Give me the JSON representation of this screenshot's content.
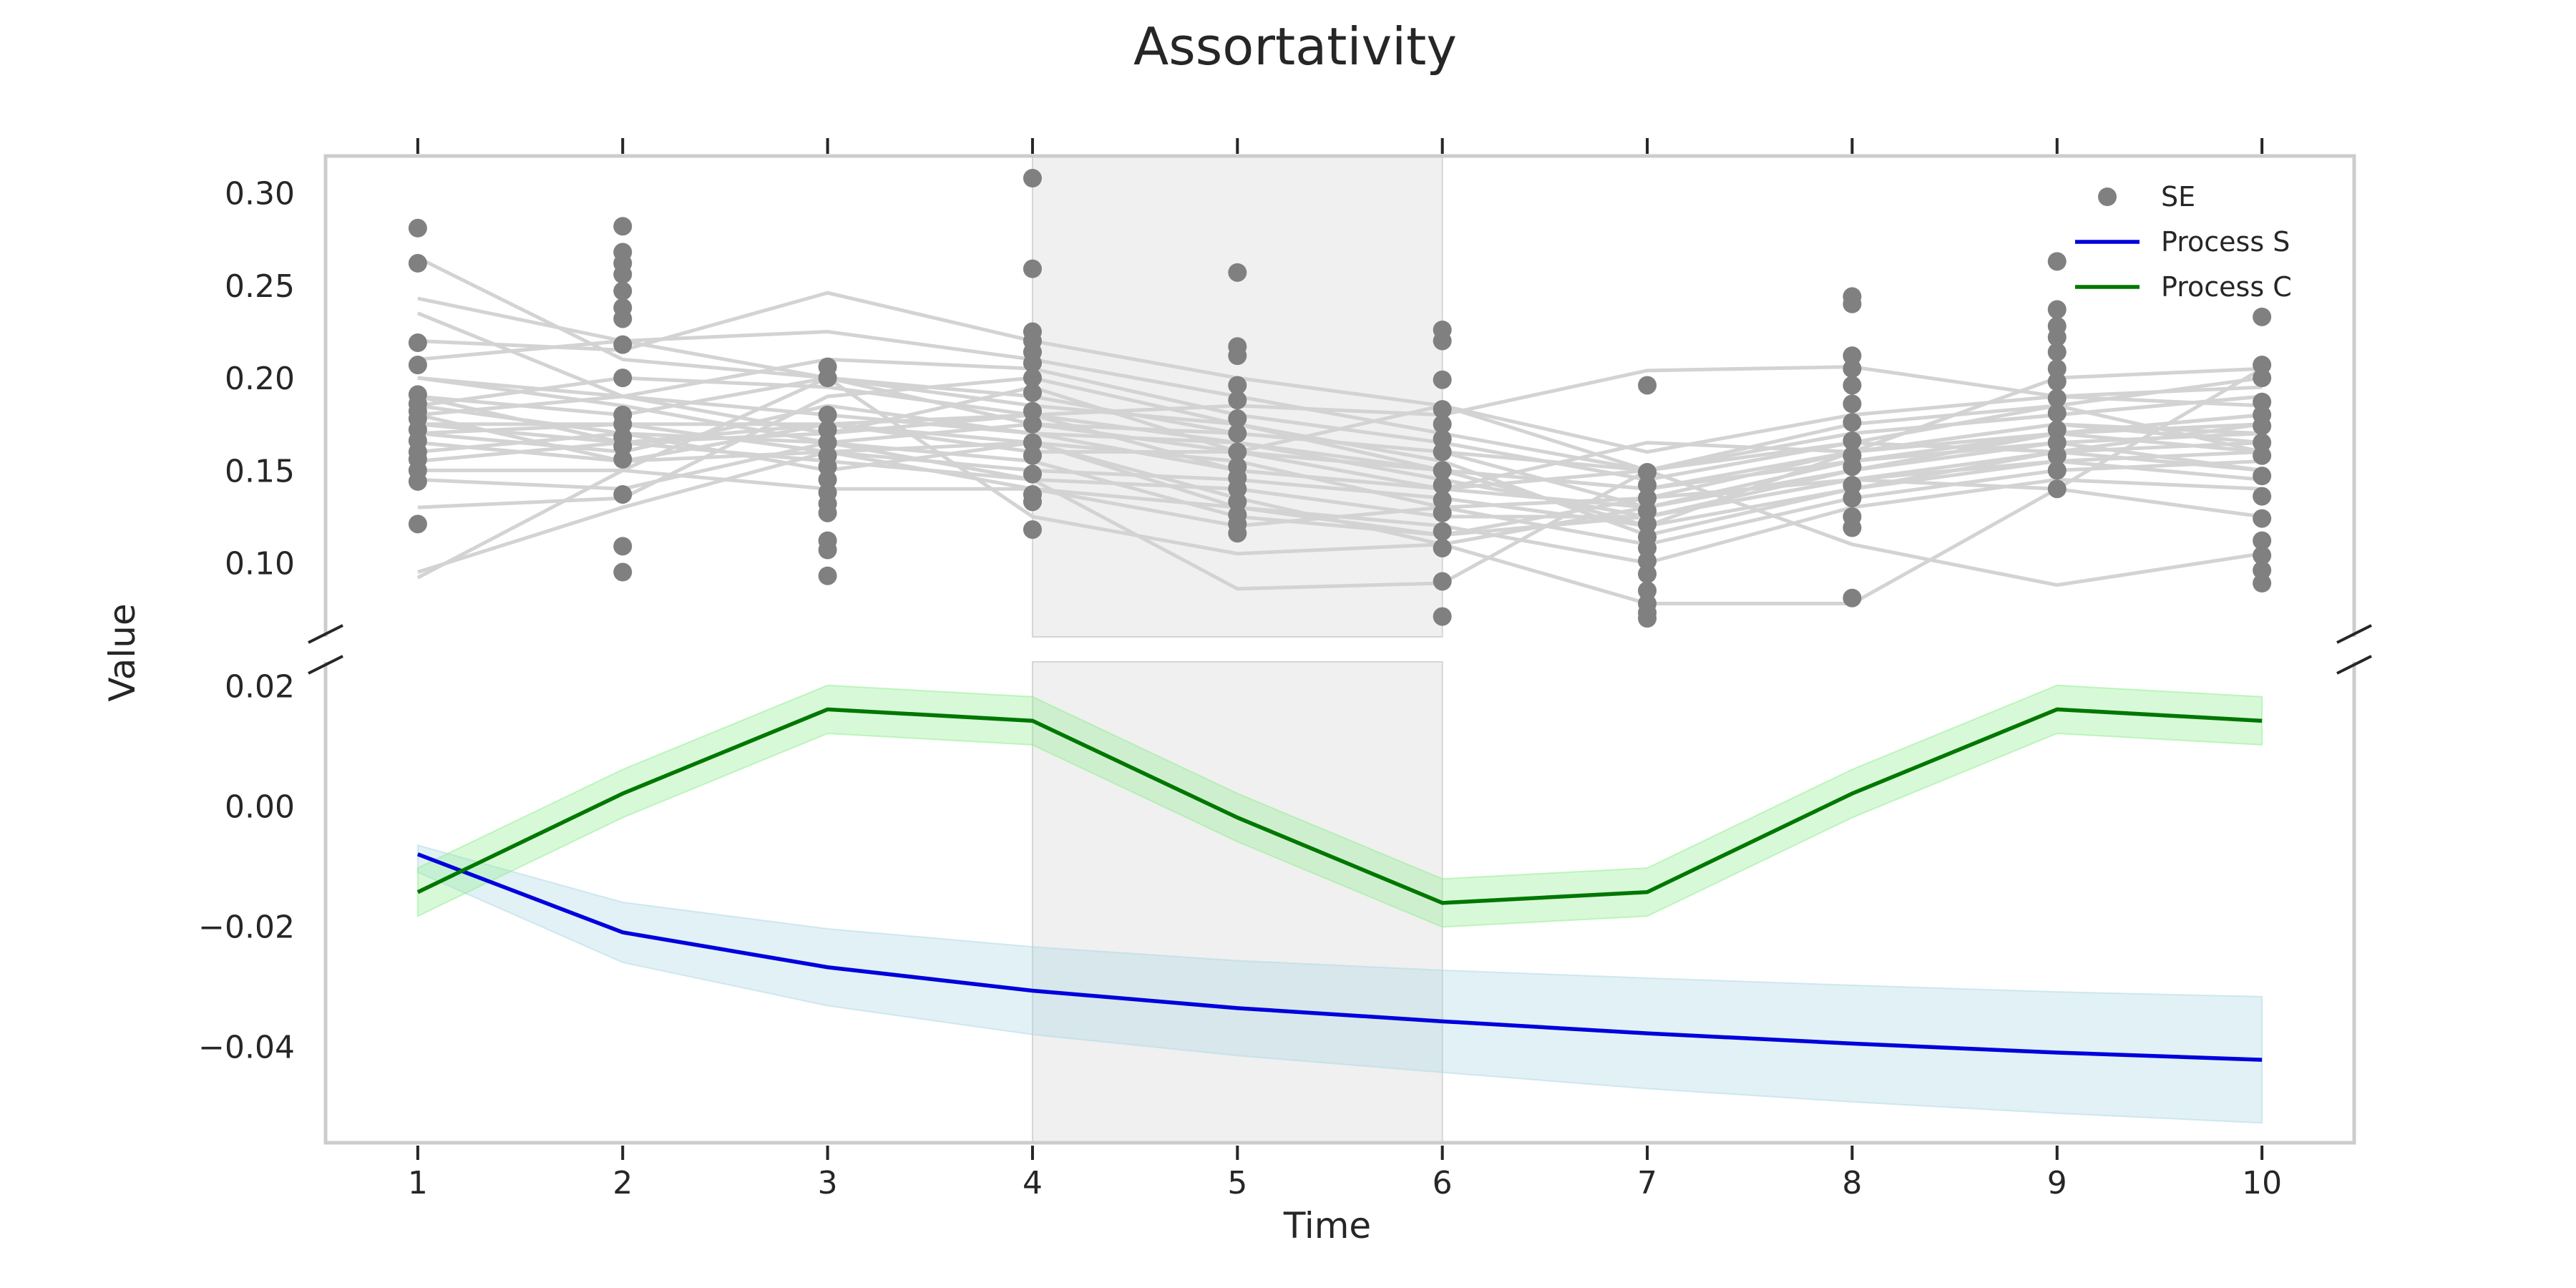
{
  "chart_data": {
    "type": "line",
    "title": "Assortativity",
    "xlabel": "Time",
    "ylabel": "Value",
    "x": [
      1,
      2,
      3,
      4,
      5,
      6,
      7,
      8,
      9,
      10
    ],
    "x_ticks": [
      "1",
      "2",
      "3",
      "4",
      "5",
      "6",
      "7",
      "8",
      "9",
      "10"
    ],
    "xlim": [
      0.55,
      10.45
    ],
    "broken_axis": true,
    "shaded_x_range": [
      4,
      6
    ],
    "grid": false,
    "legend_position": "top-right",
    "legend": [
      {
        "label": "SE",
        "marker": "dot",
        "color": "#808080"
      },
      {
        "label": "Process S",
        "marker": "line",
        "color": "#0000dd"
      },
      {
        "label": "Process C",
        "marker": "line",
        "color": "#007700"
      }
    ],
    "panels": [
      {
        "name": "upper",
        "ylim": [
          0.06,
          0.32
        ],
        "y_ticks": [
          "0.10",
          "0.15",
          "0.20",
          "0.25",
          "0.30"
        ],
        "y_tick_values": [
          0.1,
          0.15,
          0.2,
          0.25,
          0.3
        ],
        "se_points": [
          {
            "x": 1,
            "values": [
              0.281,
              0.262,
              0.219,
              0.207,
              0.191,
              0.186,
              0.182,
              0.178,
              0.172,
              0.166,
              0.16,
              0.156,
              0.15,
              0.144,
              0.121
            ]
          },
          {
            "x": 2,
            "values": [
              0.282,
              0.268,
              0.262,
              0.256,
              0.247,
              0.238,
              0.232,
              0.218,
              0.2,
              0.18,
              0.175,
              0.168,
              0.163,
              0.156,
              0.137,
              0.109,
              0.095
            ]
          },
          {
            "x": 3,
            "values": [
              0.206,
              0.2,
              0.18,
              0.172,
              0.165,
              0.158,
              0.152,
              0.145,
              0.138,
              0.132,
              0.127,
              0.112,
              0.107,
              0.093
            ]
          },
          {
            "x": 4,
            "values": [
              0.308,
              0.259,
              0.225,
              0.22,
              0.214,
              0.208,
              0.2,
              0.192,
              0.182,
              0.175,
              0.165,
              0.158,
              0.148,
              0.137,
              0.133,
              0.118
            ]
          },
          {
            "x": 5,
            "values": [
              0.257,
              0.217,
              0.212,
              0.196,
              0.188,
              0.178,
              0.17,
              0.16,
              0.152,
              0.146,
              0.14,
              0.133,
              0.126,
              0.121,
              0.116
            ]
          },
          {
            "x": 6,
            "values": [
              0.226,
              0.22,
              0.199,
              0.183,
              0.175,
              0.167,
              0.16,
              0.15,
              0.142,
              0.134,
              0.127,
              0.117,
              0.108,
              0.09,
              0.071
            ]
          },
          {
            "x": 7,
            "values": [
              0.196,
              0.149,
              0.142,
              0.135,
              0.128,
              0.121,
              0.114,
              0.108,
              0.101,
              0.094,
              0.085,
              0.078,
              0.073,
              0.07
            ]
          },
          {
            "x": 8,
            "values": [
              0.244,
              0.24,
              0.212,
              0.205,
              0.196,
              0.186,
              0.176,
              0.166,
              0.158,
              0.152,
              0.142,
              0.135,
              0.125,
              0.119,
              0.081
            ]
          },
          {
            "x": 9,
            "values": [
              0.263,
              0.237,
              0.228,
              0.222,
              0.214,
              0.205,
              0.198,
              0.189,
              0.181,
              0.172,
              0.165,
              0.158,
              0.15,
              0.14
            ]
          },
          {
            "x": 10,
            "values": [
              0.233,
              0.207,
              0.2,
              0.187,
              0.18,
              0.174,
              0.165,
              0.158,
              0.147,
              0.136,
              0.124,
              0.112,
              0.104,
              0.096,
              0.089
            ]
          }
        ],
        "subject_trajectories": [
          [
            0.243,
            0.22,
            0.2,
            0.19,
            0.17,
            0.16,
            0.15,
            0.17,
            0.18,
            0.19
          ],
          [
            0.265,
            0.21,
            0.2,
            0.175,
            0.16,
            0.14,
            0.13,
            0.15,
            0.17,
            0.18
          ],
          [
            0.235,
            0.19,
            0.18,
            0.17,
            0.165,
            0.15,
            0.14,
            0.16,
            0.175,
            0.17
          ],
          [
            0.22,
            0.215,
            0.246,
            0.22,
            0.2,
            0.185,
            0.16,
            0.18,
            0.19,
            0.195
          ],
          [
            0.21,
            0.22,
            0.225,
            0.21,
            0.19,
            0.17,
            0.15,
            0.17,
            0.18,
            0.19
          ],
          [
            0.2,
            0.19,
            0.21,
            0.205,
            0.18,
            0.165,
            0.145,
            0.165,
            0.185,
            0.2
          ],
          [
            0.19,
            0.18,
            0.2,
            0.185,
            0.175,
            0.15,
            0.12,
            0.16,
            0.2,
            0.205
          ],
          [
            0.185,
            0.17,
            0.165,
            0.175,
            0.17,
            0.16,
            0.13,
            0.15,
            0.17,
            0.18
          ],
          [
            0.18,
            0.19,
            0.17,
            0.18,
            0.165,
            0.145,
            0.125,
            0.145,
            0.16,
            0.175
          ],
          [
            0.175,
            0.175,
            0.175,
            0.16,
            0.16,
            0.15,
            0.14,
            0.155,
            0.165,
            0.17
          ],
          [
            0.17,
            0.16,
            0.185,
            0.17,
            0.15,
            0.14,
            0.15,
            0.165,
            0.16,
            0.165
          ],
          [
            0.165,
            0.155,
            0.16,
            0.15,
            0.145,
            0.135,
            0.12,
            0.14,
            0.155,
            0.16
          ],
          [
            0.16,
            0.17,
            0.15,
            0.165,
            0.155,
            0.13,
            0.11,
            0.135,
            0.15,
            0.155
          ],
          [
            0.155,
            0.165,
            0.155,
            0.145,
            0.14,
            0.125,
            0.125,
            0.15,
            0.165,
            0.15
          ],
          [
            0.15,
            0.15,
            0.14,
            0.14,
            0.13,
            0.12,
            0.1,
            0.13,
            0.145,
            0.14
          ],
          [
            0.145,
            0.14,
            0.165,
            0.155,
            0.125,
            0.115,
            0.135,
            0.16,
            0.175,
            0.165
          ],
          [
            0.13,
            0.135,
            0.19,
            0.2,
            0.175,
            0.155,
            0.115,
            0.14,
            0.16,
            0.15
          ],
          [
            0.095,
            0.13,
            0.16,
            0.165,
            0.135,
            0.11,
            0.13,
            0.155,
            0.17,
            0.175
          ],
          [
            0.092,
            0.15,
            0.2,
            0.125,
            0.105,
            0.11,
            0.078,
            0.078,
            0.14,
            0.205
          ],
          [
            0.185,
            0.2,
            0.195,
            0.18,
            0.185,
            0.18,
            0.204,
            0.206,
            0.19,
            0.185
          ],
          [
            0.175,
            0.165,
            0.17,
            0.195,
            0.16,
            0.185,
            0.15,
            0.175,
            0.185,
            0.16
          ],
          [
            0.19,
            0.165,
            0.175,
            0.18,
            0.15,
            0.14,
            0.165,
            0.16,
            0.17,
            0.16
          ],
          [
            0.18,
            0.155,
            0.175,
            0.165,
            0.13,
            0.115,
            0.125,
            0.145,
            0.155,
            0.145
          ],
          [
            0.17,
            0.175,
            0.16,
            0.14,
            0.12,
            0.13,
            0.135,
            0.145,
            0.14,
            0.125
          ],
          [
            0.2,
            0.185,
            0.165,
            0.145,
            0.086,
            0.089,
            0.15,
            0.11,
            0.088,
            0.105
          ]
        ]
      },
      {
        "name": "lower",
        "ylim": [
          -0.056,
          0.024
        ],
        "y_ticks": [
          "0.02",
          "0.00",
          "−0.02",
          "−0.04"
        ],
        "y_tick_values": [
          0.02,
          0.0,
          -0.02,
          -0.04
        ],
        "series": [
          {
            "name": "Process S",
            "color": "#0000dd",
            "band_color": "#add8e6",
            "values": [
              -0.008,
              -0.021,
              -0.0268,
              -0.0307,
              -0.0336,
              -0.0358,
              -0.0378,
              -0.0395,
              -0.041,
              -0.0422
            ],
            "lower": [
              -0.011,
              -0.026,
              -0.0332,
              -0.038,
              -0.0415,
              -0.0443,
              -0.047,
              -0.0492,
              -0.0511,
              -0.0527
            ],
            "upper": [
              -0.0065,
              -0.016,
              -0.0204,
              -0.0234,
              -0.0257,
              -0.0273,
              -0.0286,
              -0.0298,
              -0.0309,
              -0.0317
            ]
          },
          {
            "name": "Process C",
            "color": "#007700",
            "band_color": "#90ee90",
            "values": [
              -0.0143,
              0.0021,
              0.0161,
              0.0142,
              -0.0019,
              -0.0161,
              -0.0143,
              0.0021,
              0.0161,
              0.0142
            ],
            "lower": [
              -0.0183,
              -0.0019,
              0.0121,
              0.0102,
              -0.0059,
              -0.0201,
              -0.0183,
              -0.0019,
              0.0121,
              0.0102
            ],
            "upper": [
              -0.0103,
              0.0061,
              0.0201,
              0.0182,
              0.0021,
              -0.0121,
              -0.0103,
              0.0061,
              0.0201,
              0.0182
            ]
          }
        ]
      }
    ]
  }
}
